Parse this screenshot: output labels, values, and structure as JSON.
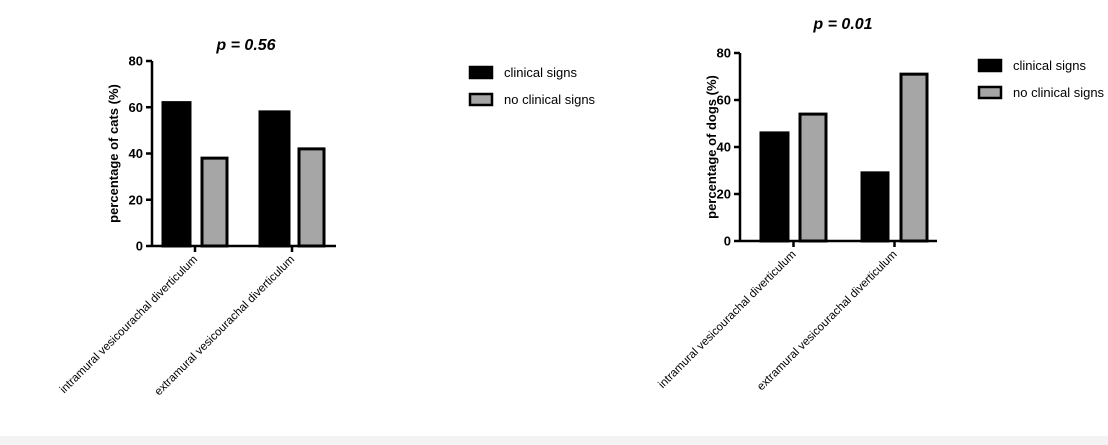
{
  "legend_labels": [
    "clinical signs",
    "no clinical signs"
  ],
  "colors": {
    "clinical": "#000000",
    "no_clinical": "#a6a6a6",
    "outline": "#000000"
  },
  "chart_data": [
    {
      "type": "bar",
      "title": "p = 0.56",
      "ylabel": "percentage of cats (%)",
      "xlabel": "",
      "categories": [
        "intramural vesicourachal diverticulum",
        "extramural vesicourachal diverticulum"
      ],
      "series": [
        {
          "name": "clinical signs",
          "values": [
            62,
            58
          ]
        },
        {
          "name": "no clinical signs",
          "values": [
            38,
            42
          ]
        }
      ],
      "ylim": [
        0,
        80
      ],
      "yticks": [
        0,
        20,
        40,
        60,
        80
      ],
      "grid": false,
      "legend": "right"
    },
    {
      "type": "bar",
      "title": "p = 0.01",
      "ylabel": "percentage of dogs (%)",
      "xlabel": "",
      "categories": [
        "intramural vesicourachal diverticulum",
        "extramural vesicourachal diverticulum"
      ],
      "series": [
        {
          "name": "clinical signs",
          "values": [
            46,
            29
          ]
        },
        {
          "name": "no clinical signs",
          "values": [
            54,
            71
          ]
        }
      ],
      "ylim": [
        0,
        80
      ],
      "yticks": [
        0,
        20,
        40,
        60,
        80
      ],
      "grid": false,
      "legend": "right"
    }
  ]
}
